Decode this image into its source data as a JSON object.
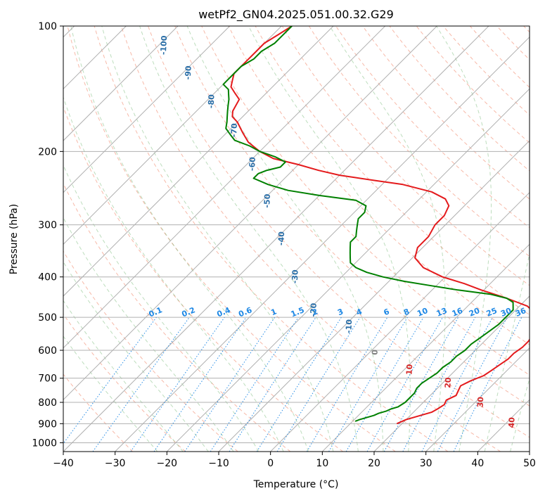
{
  "chart_data": {
    "type": "line",
    "title": "wetPf2_GN04.2025.051.00.32.G29",
    "xlabel": "Temperature (°C)",
    "ylabel": "Pressure (hPa)",
    "xlim": [
      -40,
      50
    ],
    "ylim": [
      1050,
      100
    ],
    "y_scale": "log",
    "skew": true,
    "grid": true,
    "x_ticks": [
      "−40",
      "−30",
      "−20",
      "−10",
      "0",
      "10",
      "20",
      "30",
      "40",
      "50"
    ],
    "y_ticks": [
      "100",
      "200",
      "300",
      "400",
      "500",
      "600",
      "700",
      "800",
      "900",
      "1000"
    ],
    "series": [
      {
        "color": "#e41a1c",
        "pressure": [
          900,
          880,
          860,
          845,
          830,
          810,
          790,
          770,
          750,
          730,
          710,
          690,
          670,
          650,
          630,
          610,
          590,
          570,
          550,
          530,
          510,
          490,
          470,
          450,
          430,
          415,
          400,
          380,
          360,
          340,
          320,
          300,
          285,
          270,
          260,
          250,
          240,
          235,
          228,
          222,
          215,
          208,
          200,
          190,
          180,
          170,
          165,
          160,
          150,
          145,
          140,
          135,
          130,
          120,
          115,
          110,
          105,
          100
        ],
        "temperature": [
          19,
          20,
          22,
          23.5,
          24,
          24.5,
          24,
          25,
          24.5,
          24,
          25,
          26.5,
          27,
          27.5,
          28,
          28,
          28.5,
          28.5,
          28,
          27.5,
          26.5,
          24.5,
          21.5,
          16,
          9.5,
          5,
          -0.5,
          -6,
          -9.5,
          -11,
          -11,
          -12,
          -12,
          -13,
          -15,
          -19,
          -26,
          -32,
          -40,
          -45,
          -50,
          -56,
          -60,
          -64,
          -67,
          -70,
          -72,
          -73,
          -74,
          -76,
          -78,
          -79,
          -80,
          -80,
          -80,
          -80,
          -79,
          -78
        ]
      },
      {
        "color": "#008000",
        "pressure": [
          888,
          880,
          870,
          860,
          850,
          840,
          830,
          820,
          800,
          780,
          760,
          740,
          720,
          700,
          680,
          660,
          640,
          620,
          600,
          580,
          560,
          540,
          520,
          500,
          480,
          460,
          450,
          440,
          430,
          420,
          410,
          400,
          390,
          380,
          370,
          360,
          350,
          340,
          330,
          320,
          310,
          300,
          290,
          280,
          270,
          262,
          255,
          248,
          240,
          232,
          226,
          222,
          218,
          212,
          206,
          200,
          194,
          188,
          182,
          176,
          170,
          165,
          160,
          155,
          150,
          146,
          142,
          138,
          134,
          130,
          125,
          120,
          115,
          110,
          105,
          100
        ],
        "temperature": [
          10.5,
          11,
          12,
          13,
          13.5,
          14.5,
          15,
          16,
          16.5,
          16.5,
          16.5,
          16,
          16,
          16.5,
          17,
          17,
          17.5,
          17.5,
          18,
          18,
          18.5,
          19,
          19.5,
          19.5,
          19.5,
          18,
          16,
          12,
          5,
          -1,
          -7,
          -12,
          -16,
          -19,
          -21,
          -22,
          -23,
          -24,
          -25,
          -25,
          -26,
          -27,
          -28,
          -28,
          -29,
          -32,
          -40,
          -47,
          -52,
          -56,
          -56,
          -55,
          -53,
          -53,
          -56,
          -60,
          -63,
          -67,
          -69,
          -71,
          -72,
          -73,
          -74,
          -75,
          -76,
          -77,
          -78,
          -80,
          -80,
          -80,
          -80,
          -79,
          -79,
          -78,
          -78,
          -78
        ]
      }
    ],
    "isotherm_labels": [
      "-100",
      "-90",
      "-80",
      "-70",
      "-60",
      "-50",
      "-40",
      "-30",
      "-20",
      "-10",
      "0",
      "10",
      "20",
      "30",
      "40"
    ],
    "mixing_ratio_labels": [
      "0.1",
      "0.2",
      "0.4",
      "0.6",
      "1",
      "1.5",
      "2",
      "3",
      "4",
      "6",
      "8",
      "10",
      "13",
      "16",
      "20",
      "25",
      "30",
      "36"
    ]
  },
  "colors": {
    "temperature_line": "#e41a1c",
    "dewpoint_line": "#008000",
    "cold_isotherm_label": "#2b6fa8",
    "warm_isotherm_label": "#d62728",
    "zero_isotherm_label": "#808080",
    "mixing_ratio": "#1e88e5",
    "dry_adiabat": "#f08060",
    "moist_adiabat": "#5aaa5a",
    "grid": "#b0b0b0"
  }
}
